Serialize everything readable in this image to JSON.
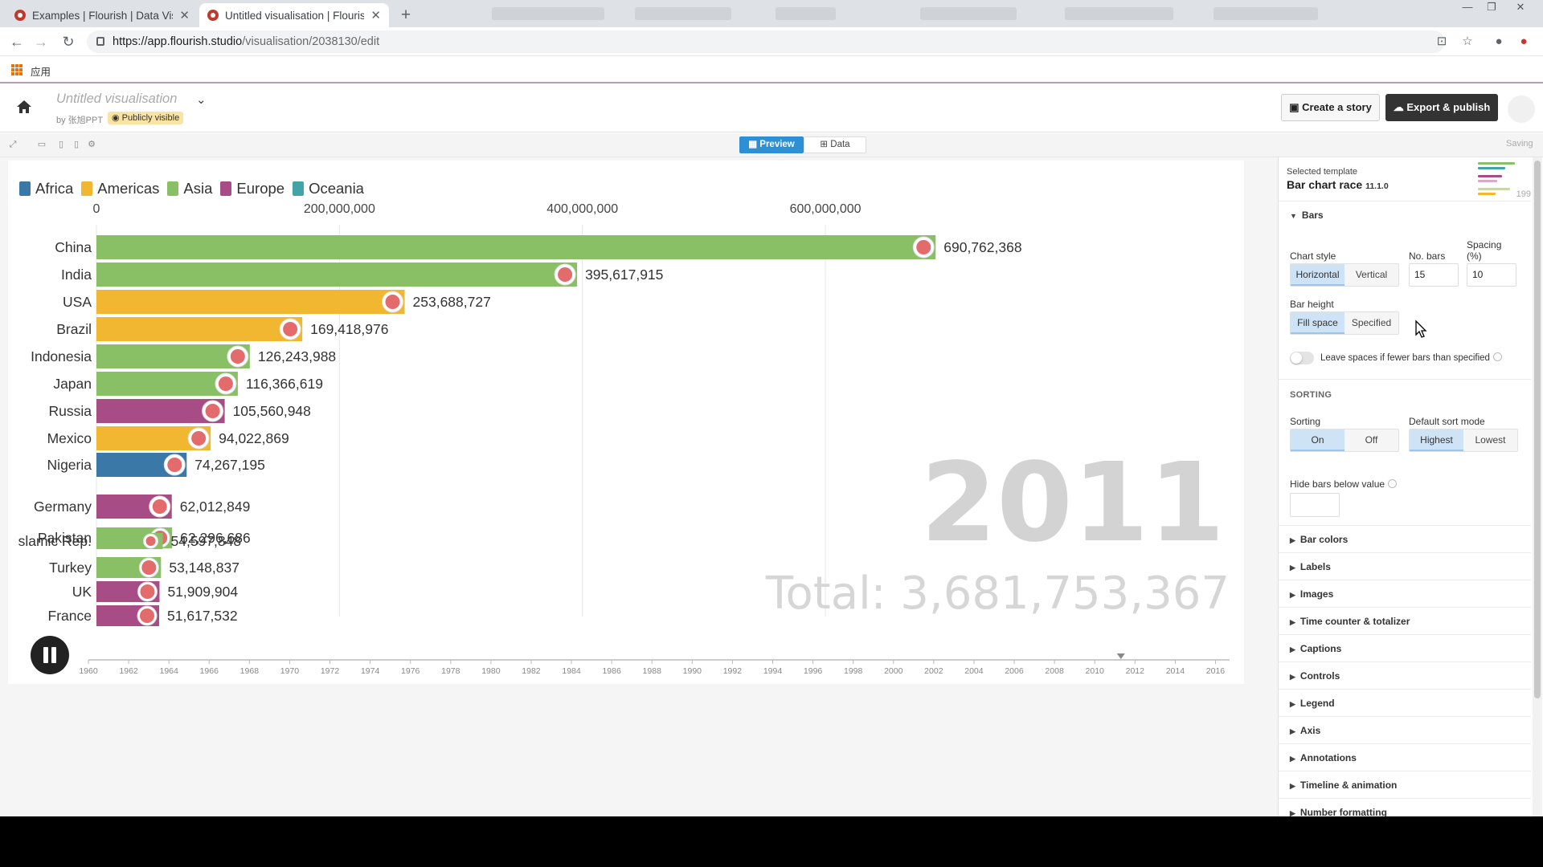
{
  "browser": {
    "tabs": [
      {
        "title": "Examples | Flourish | Data Visu"
      },
      {
        "title": "Untitled visualisation | Flourish"
      }
    ],
    "url_host": "https://app.flourish.studio",
    "url_path": "/visualisation/2038130/edit",
    "bookmark_apps": "应用"
  },
  "header": {
    "title": "Untitled visualisation",
    "byline": "by 张旭PPT",
    "visibility": "Publicly visible",
    "create_story": "Create a story",
    "export_publish": "Export & publish"
  },
  "toolbar": {
    "preview": "Preview",
    "data": "Data",
    "saving": "Saving"
  },
  "chart_data": {
    "type": "bar",
    "legend": [
      {
        "name": "Africa",
        "color": "#3a78a8"
      },
      {
        "name": "Americas",
        "color": "#f2b731"
      },
      {
        "name": "Asia",
        "color": "#8ac065"
      },
      {
        "name": "Europe",
        "color": "#a84c86"
      },
      {
        "name": "Oceania",
        "color": "#43a4a8"
      }
    ],
    "x_ticks": [
      0,
      200000000,
      400000000,
      600000000
    ],
    "x_tick_labels": [
      "0",
      "200,000,000",
      "400,000,000",
      "600,000,000"
    ],
    "xlim": [
      0,
      760000000
    ],
    "bars": [
      {
        "label": "China",
        "value": 690762368,
        "value_label": "690,762,368",
        "region": "Asia"
      },
      {
        "label": "India",
        "value": 395617915,
        "value_label": "395,617,915",
        "region": "Asia"
      },
      {
        "label": "USA",
        "value": 253688727,
        "value_label": "253,688,727",
        "region": "Americas"
      },
      {
        "label": "Brazil",
        "value": 169418976,
        "value_label": "169,418,976",
        "region": "Americas"
      },
      {
        "label": "Indonesia",
        "value": 126243988,
        "value_label": "126,243,988",
        "region": "Asia"
      },
      {
        "label": "Japan",
        "value": 116366619,
        "value_label": "116,366,619",
        "region": "Asia"
      },
      {
        "label": "Russia",
        "value": 105560948,
        "value_label": "105,560,948",
        "region": "Europe"
      },
      {
        "label": "Mexico",
        "value": 94022869,
        "value_label": "94,022,869",
        "region": "Americas"
      },
      {
        "label": "Nigeria",
        "value": 74267195,
        "value_label": "74,267,195",
        "region": "Africa"
      },
      {
        "label": "Germany",
        "value": 62012849,
        "value_label": "62,012,849",
        "region": "Europe"
      },
      {
        "label": "Pakistan",
        "value": 62296686,
        "value_label": "62,296,686",
        "region": "Asia"
      },
      {
        "label": "slamic Rep.",
        "value": 54597848,
        "value_label": "54,597,848",
        "region": "Asia"
      },
      {
        "label": "Turkey",
        "value": 53148837,
        "value_label": "53,148,837",
        "region": "Asia"
      },
      {
        "label": "UK",
        "value": 51909904,
        "value_label": "51,909,904",
        "region": "Europe"
      },
      {
        "label": "France",
        "value": 51617532,
        "value_label": "51,617,532",
        "region": "Europe"
      }
    ],
    "year": "2011",
    "total": "Total: 3,681,753,367",
    "timeline_labels": [
      "1960",
      "1962",
      "1964",
      "1966",
      "1968",
      "1970",
      "1972",
      "1974",
      "1976",
      "1978",
      "1980",
      "1982",
      "1984",
      "1986",
      "1988",
      "1990",
      "1992",
      "1994",
      "1996",
      "1998",
      "2000",
      "2002",
      "2004",
      "2006",
      "2008",
      "2010",
      "2012",
      "2014",
      "2016"
    ],
    "timeline_position_year": 2011.3
  },
  "panel": {
    "selected_template": "Selected template",
    "template_name": "Bar chart race",
    "template_version": "11.1.0",
    "thumb_year": "199",
    "bars_section": "Bars",
    "chart_style_label": "Chart style",
    "horizontal": "Horizontal",
    "vertical": "Vertical",
    "no_bars_label": "No. bars",
    "no_bars_value": "15",
    "spacing_label": "Spacing",
    "spacing_unit": "(%)",
    "spacing_value": "10",
    "bar_height_label": "Bar height",
    "fill_space": "Fill space",
    "specified": "Specified",
    "leave_spaces": "Leave spaces if fewer bars than specified",
    "sorting_category": "SORTING",
    "sorting_label": "Sorting",
    "on": "On",
    "off": "Off",
    "default_sort_label": "Default sort mode",
    "highest": "Highest",
    "lowest": "Lowest",
    "hide_below_label": "Hide bars below value",
    "sections": [
      "Bar colors",
      "Labels",
      "Images",
      "Time counter & totalizer",
      "Captions",
      "Controls",
      "Legend",
      "Axis",
      "Annotations",
      "Timeline & animation",
      "Number formatting"
    ]
  }
}
